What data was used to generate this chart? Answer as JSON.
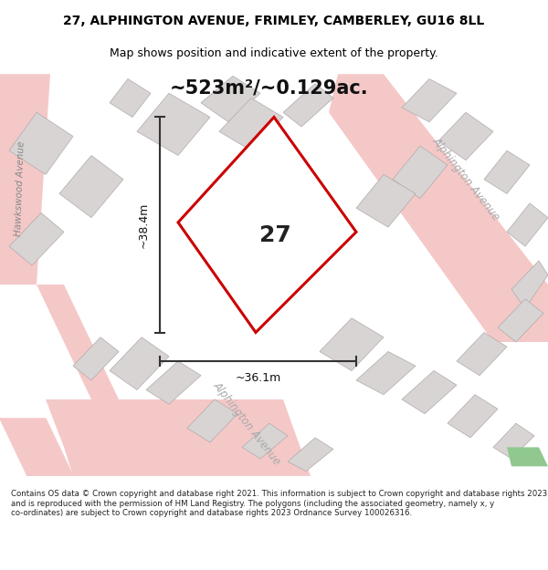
{
  "title_line1": "27, ALPHINGTON AVENUE, FRIMLEY, CAMBERLEY, GU16 8LL",
  "title_line2": "Map shows position and indicative extent of the property.",
  "area_text": "~523m²/~0.129ac.",
  "width_label": "~36.1m",
  "height_label": "~38.4m",
  "plot_number": "27",
  "footer_text": "Contains OS data © Crown copyright and database right 2021. This information is subject to Crown copyright and database rights 2023 and is reproduced with the permission of HM Land Registry. The polygons (including the associated geometry, namely x, y co-ordinates) are subject to Crown copyright and database rights 2023 Ordnance Survey 100026316.",
  "bg_color": "#f0eeee",
  "map_bg": "#f5f3f3",
  "road_color_major": "#f5c8c8",
  "road_color_minor": "#f5c8c8",
  "plot_outline_color": "#cc0000",
  "plot_fill_color": "#ffffff",
  "building_fill": "#d8d4d4",
  "building_outline": "#b0aaaa",
  "text_color": "#000000",
  "dim_color": "#333333",
  "footer_bg": "#ffffff",
  "green_patch_color": "#90c890",
  "hawkswood_label": "Hawkswood Avenue",
  "alphington_label_diag1": "Alphington Avenue",
  "alphington_label_diag2": "Alphington Avenue"
}
